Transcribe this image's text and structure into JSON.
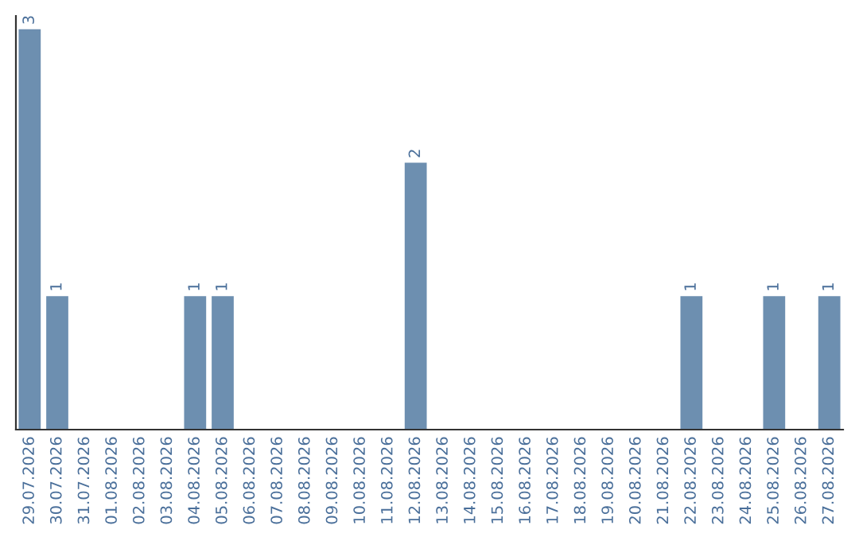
{
  "chart_data": {
    "type": "bar",
    "categories": [
      "29.07.2026",
      "30.07.2026",
      "31.07.2026",
      "01.08.2026",
      "02.08.2026",
      "03.08.2026",
      "04.08.2026",
      "05.08.2026",
      "06.08.2026",
      "07.08.2026",
      "08.08.2026",
      "09.08.2026",
      "10.08.2026",
      "11.08.2026",
      "12.08.2026",
      "13.08.2026",
      "14.08.2026",
      "15.08.2026",
      "16.08.2026",
      "17.08.2026",
      "18.08.2026",
      "19.08.2026",
      "20.08.2026",
      "21.08.2026",
      "22.08.2026",
      "23.08.2026",
      "24.08.2026",
      "25.08.2026",
      "26.08.2026",
      "27.08.2026"
    ],
    "values": [
      3,
      1,
      0,
      0,
      0,
      0,
      1,
      1,
      0,
      0,
      0,
      0,
      0,
      0,
      2,
      0,
      0,
      0,
      0,
      0,
      0,
      0,
      0,
      0,
      1,
      0,
      0,
      1,
      0,
      1
    ],
    "value_labels": [
      "3",
      "1",
      null,
      null,
      null,
      null,
      "1",
      "1",
      null,
      null,
      null,
      null,
      null,
      null,
      "2",
      null,
      null,
      null,
      null,
      null,
      null,
      null,
      null,
      null,
      "1",
      null,
      null,
      "1",
      null,
      "1"
    ],
    "color": "#6d8fb0",
    "ylim": [
      0,
      3.1
    ],
    "tick_labels": "x",
    "grid": false,
    "legend": false
  }
}
